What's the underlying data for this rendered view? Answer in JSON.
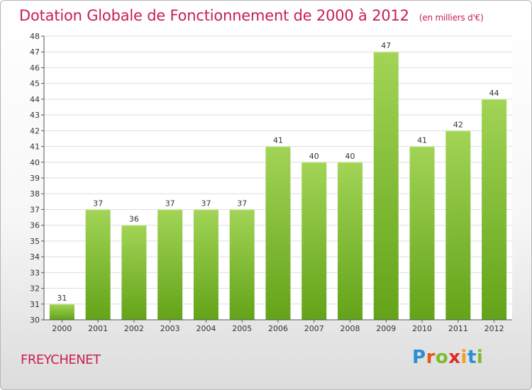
{
  "title": "Dotation Globale de Fonctionnement de 2000 à 2012",
  "subtitle": "(en milliers d'€)",
  "place": "FREYCHENET",
  "logo": {
    "text": "Proxiti",
    "letter_colors": [
      "#2a8fd6",
      "#e05a1c",
      "#7bbd2a",
      "#e02a2a",
      "#f0a020",
      "#2a8fd6",
      "#7bbd2a"
    ]
  },
  "colors": {
    "title": "#c8204f",
    "bar_top": "#a2d456",
    "bar_bottom": "#63a319",
    "grid": "#dedede",
    "axis": "#555555",
    "text": "#333333"
  },
  "chart_data": {
    "type": "bar",
    "title": "Dotation Globale de Fonctionnement de 2000 à 2012",
    "subtitle": "(en milliers d'€)",
    "xlabel": "",
    "ylabel": "",
    "categories": [
      "2000",
      "2001",
      "2002",
      "2003",
      "2004",
      "2005",
      "2006",
      "2007",
      "2008",
      "2009",
      "2010",
      "2011",
      "2012"
    ],
    "values": [
      31,
      37,
      36,
      37,
      37,
      37,
      41,
      40,
      40,
      47,
      41,
      42,
      44
    ],
    "ylim": [
      30,
      48
    ],
    "yticks": [
      30,
      31,
      32,
      33,
      34,
      35,
      36,
      37,
      38,
      39,
      40,
      41,
      42,
      43,
      44,
      45,
      46,
      47,
      48
    ],
    "grid": true,
    "legend": "none"
  }
}
